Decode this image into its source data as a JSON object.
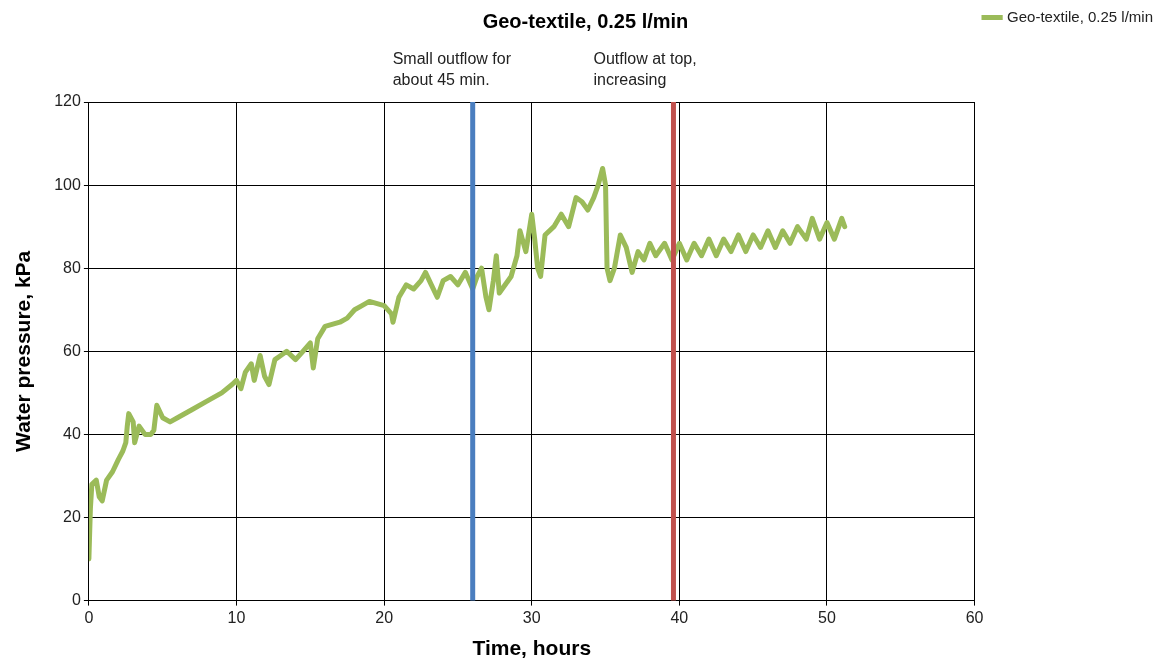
{
  "chart_data": {
    "type": "line",
    "title": "Geo-textile, 0.25 l/min",
    "xlabel": "Time, hours",
    "ylabel": "Water pressure, kPa",
    "xlim": [
      0,
      60
    ],
    "xticks": [
      0,
      10,
      20,
      30,
      40,
      50,
      60
    ],
    "ylim": [
      0,
      120
    ],
    "yticks": [
      0,
      20,
      40,
      60,
      80,
      100,
      120
    ],
    "grid": true,
    "legend": "right",
    "marker": "none",
    "line_style": "solid",
    "series": [
      {
        "name": "Geo-textile, 0.25 l/min",
        "color": "#9bbb59",
        "x": [
          0,
          0.1,
          0.2,
          0.5,
          0.7,
          0.9,
          1.2,
          1.6,
          2,
          2.3,
          2.5,
          2.6,
          2.7,
          3,
          3.1,
          3.4,
          3.8,
          4.2,
          4.4,
          4.6,
          5,
          5.5,
          6,
          7,
          8,
          9,
          9.7,
          10,
          10.3,
          10.6,
          11,
          11.2,
          11.6,
          11.9,
          12.2,
          12.6,
          13,
          13.4,
          14,
          14.5,
          15,
          15.2,
          15.5,
          16,
          17,
          17.5,
          18,
          18.5,
          19,
          20,
          20.5,
          20.6,
          21,
          21.5,
          22,
          22.5,
          22.8,
          23.2,
          23.6,
          24,
          24.5,
          25,
          25.5,
          26,
          26.3,
          26.6,
          26.9,
          27.1,
          27.4,
          27.6,
          27.8,
          28.2,
          28.6,
          29,
          29.2,
          29.6,
          30,
          30.2,
          30.4,
          30.6,
          30.9,
          31.5,
          32,
          32.5,
          33,
          33.4,
          33.8,
          34.2,
          34.5,
          34.8,
          35,
          35.1,
          35.3,
          35.6,
          36,
          36.4,
          36.8,
          37.2,
          37.6,
          38,
          38.4,
          39,
          39.5,
          40,
          40.5,
          41,
          41.5,
          42,
          42.5,
          43,
          43.5,
          44,
          44.5,
          45,
          45.5,
          46,
          46.5,
          47,
          47.5,
          48,
          48.6,
          49,
          49.5,
          50,
          50.5,
          51,
          51.2
        ],
        "values": [
          10,
          22,
          28,
          29,
          25,
          24,
          29,
          31,
          34,
          36,
          38,
          42,
          45,
          43,
          38,
          42,
          40,
          40,
          41,
          47,
          44,
          43,
          44,
          46,
          48,
          50,
          52,
          53,
          51,
          55,
          57,
          53,
          59,
          54,
          52,
          58,
          59,
          60,
          58,
          60,
          62,
          56,
          63,
          66,
          67,
          68,
          70,
          71,
          72,
          71,
          69,
          67,
          73,
          76,
          75,
          77,
          79,
          76,
          73,
          77,
          78,
          76,
          79,
          75,
          78,
          80,
          73,
          70,
          77,
          83,
          74,
          76,
          78,
          83,
          89,
          84,
          93,
          87,
          80,
          78,
          88,
          90,
          93,
          90,
          97,
          96,
          94,
          97,
          100,
          104,
          100,
          80,
          77,
          80,
          88,
          85,
          79,
          84,
          82,
          86,
          83,
          86,
          82,
          86,
          82,
          86,
          83,
          87,
          83,
          87,
          84,
          88,
          84,
          88,
          85,
          89,
          85,
          89,
          86,
          90,
          87,
          92,
          87,
          91,
          87,
          92,
          90
        ]
      }
    ],
    "ref_lines": [
      {
        "axis": "x",
        "value": 26,
        "label": "Small outflow for\nabout 45 min.",
        "color": "#4a7ebf"
      },
      {
        "axis": "x",
        "value": 39.6,
        "label": "Outflow at top,\nincreasing",
        "color": "#c0504d"
      }
    ]
  }
}
